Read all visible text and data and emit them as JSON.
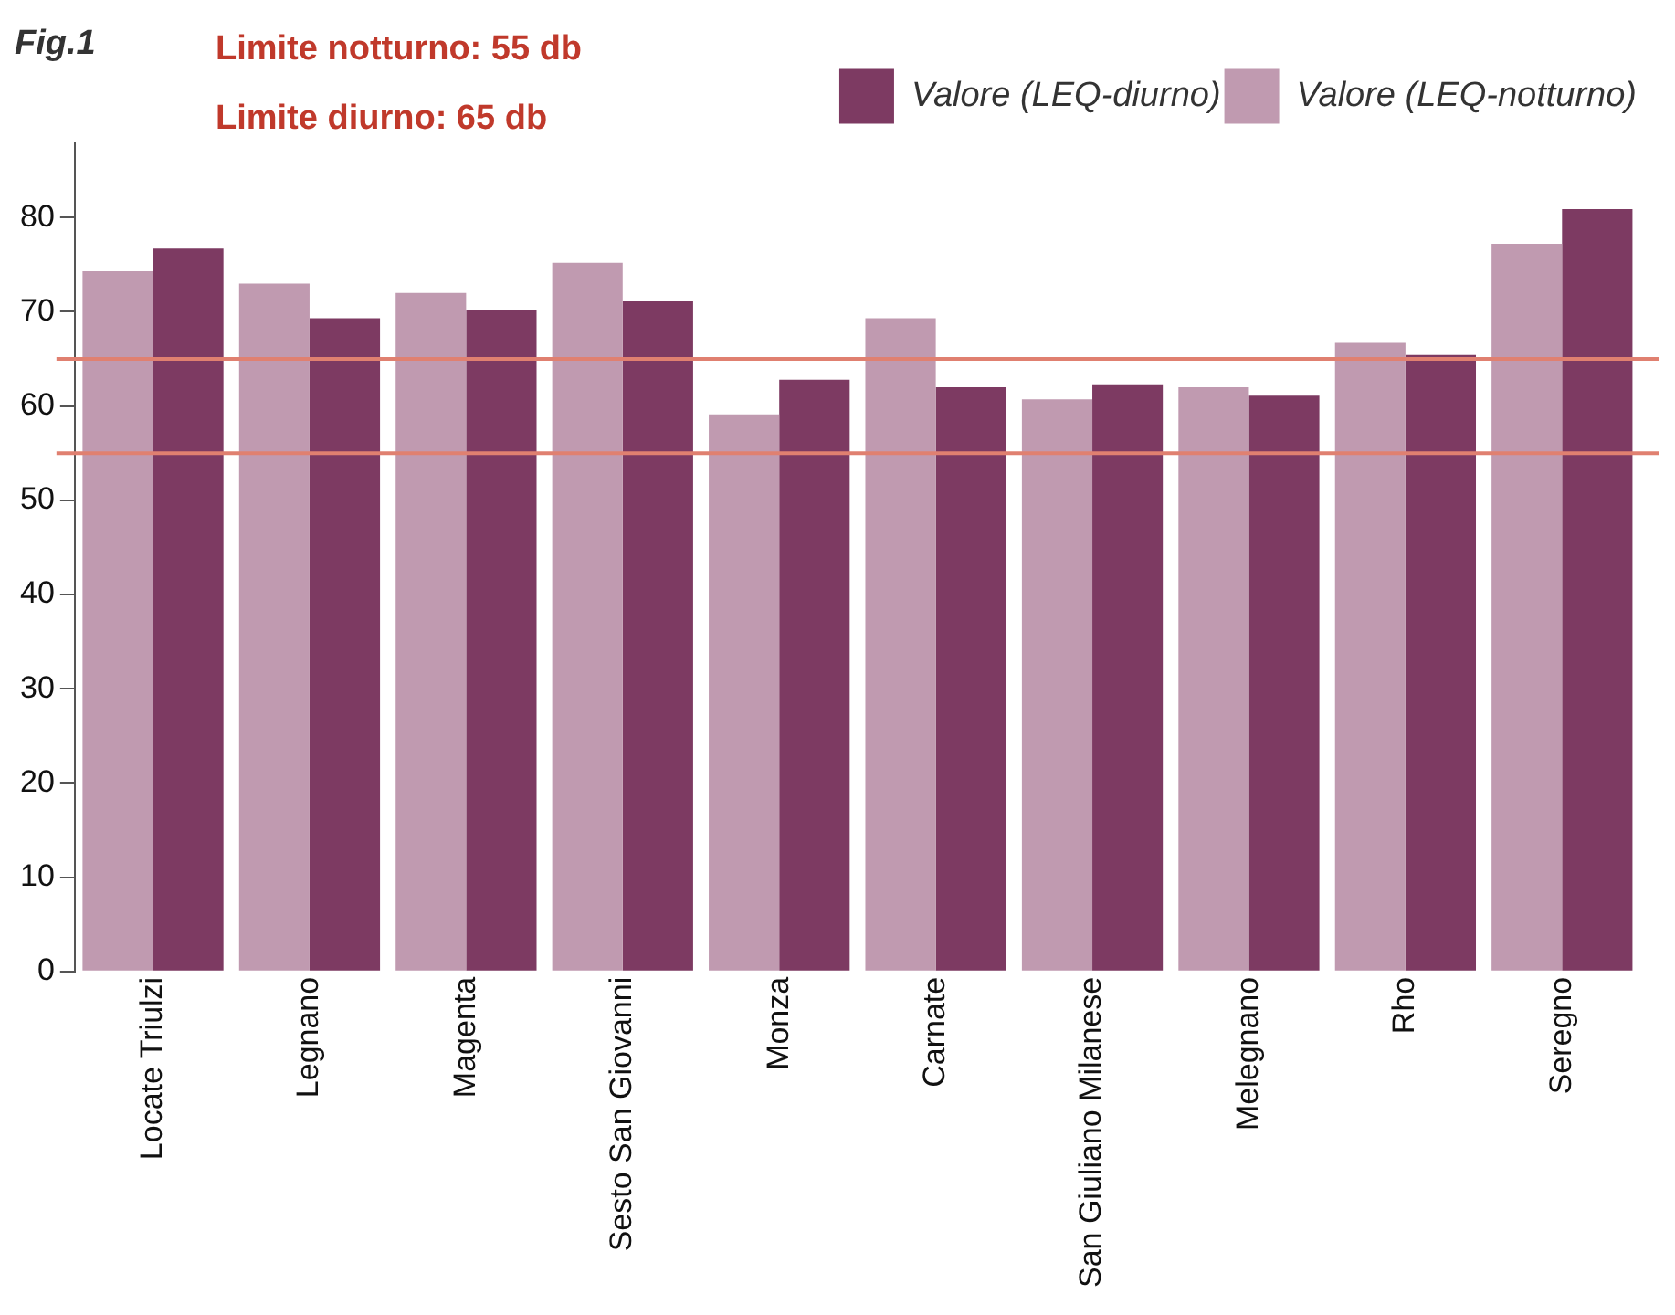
{
  "chart_data": {
    "type": "bar",
    "title": "Fig.1",
    "annotations": [
      "Limite notturno: 55 db",
      "Limite diurno: 65 db"
    ],
    "categories": [
      "Locate Triulzi",
      "Legnano",
      "Magenta",
      "Sesto San Giovanni",
      "Monza",
      "Carnate",
      "San Giuliano Milanese",
      "Melegnano",
      "Rho",
      "Seregno"
    ],
    "series": [
      {
        "name": "Valore (LEQ-notturno)",
        "color": "#c09ab0",
        "values": [
          74.3,
          73,
          72,
          75.2,
          59.1,
          69.3,
          60.7,
          62,
          66.7,
          77.2
        ]
      },
      {
        "name": "Valore (LEQ-diurno)",
        "color": "#7d3a62",
        "values": [
          76.7,
          69.3,
          70.2,
          71.1,
          62.8,
          62,
          62.2,
          61.1,
          65.4,
          80.9
        ]
      }
    ],
    "ylim": [
      0,
      88
    ],
    "yticks": [
      0,
      10,
      20,
      30,
      40,
      50,
      60,
      70,
      80
    ],
    "ref_lines": [
      {
        "axis": "y",
        "value": 55,
        "color": "#e08070"
      },
      {
        "axis": "y",
        "value": 65,
        "color": "#e08070"
      }
    ],
    "grid": false,
    "legend": "top right"
  }
}
